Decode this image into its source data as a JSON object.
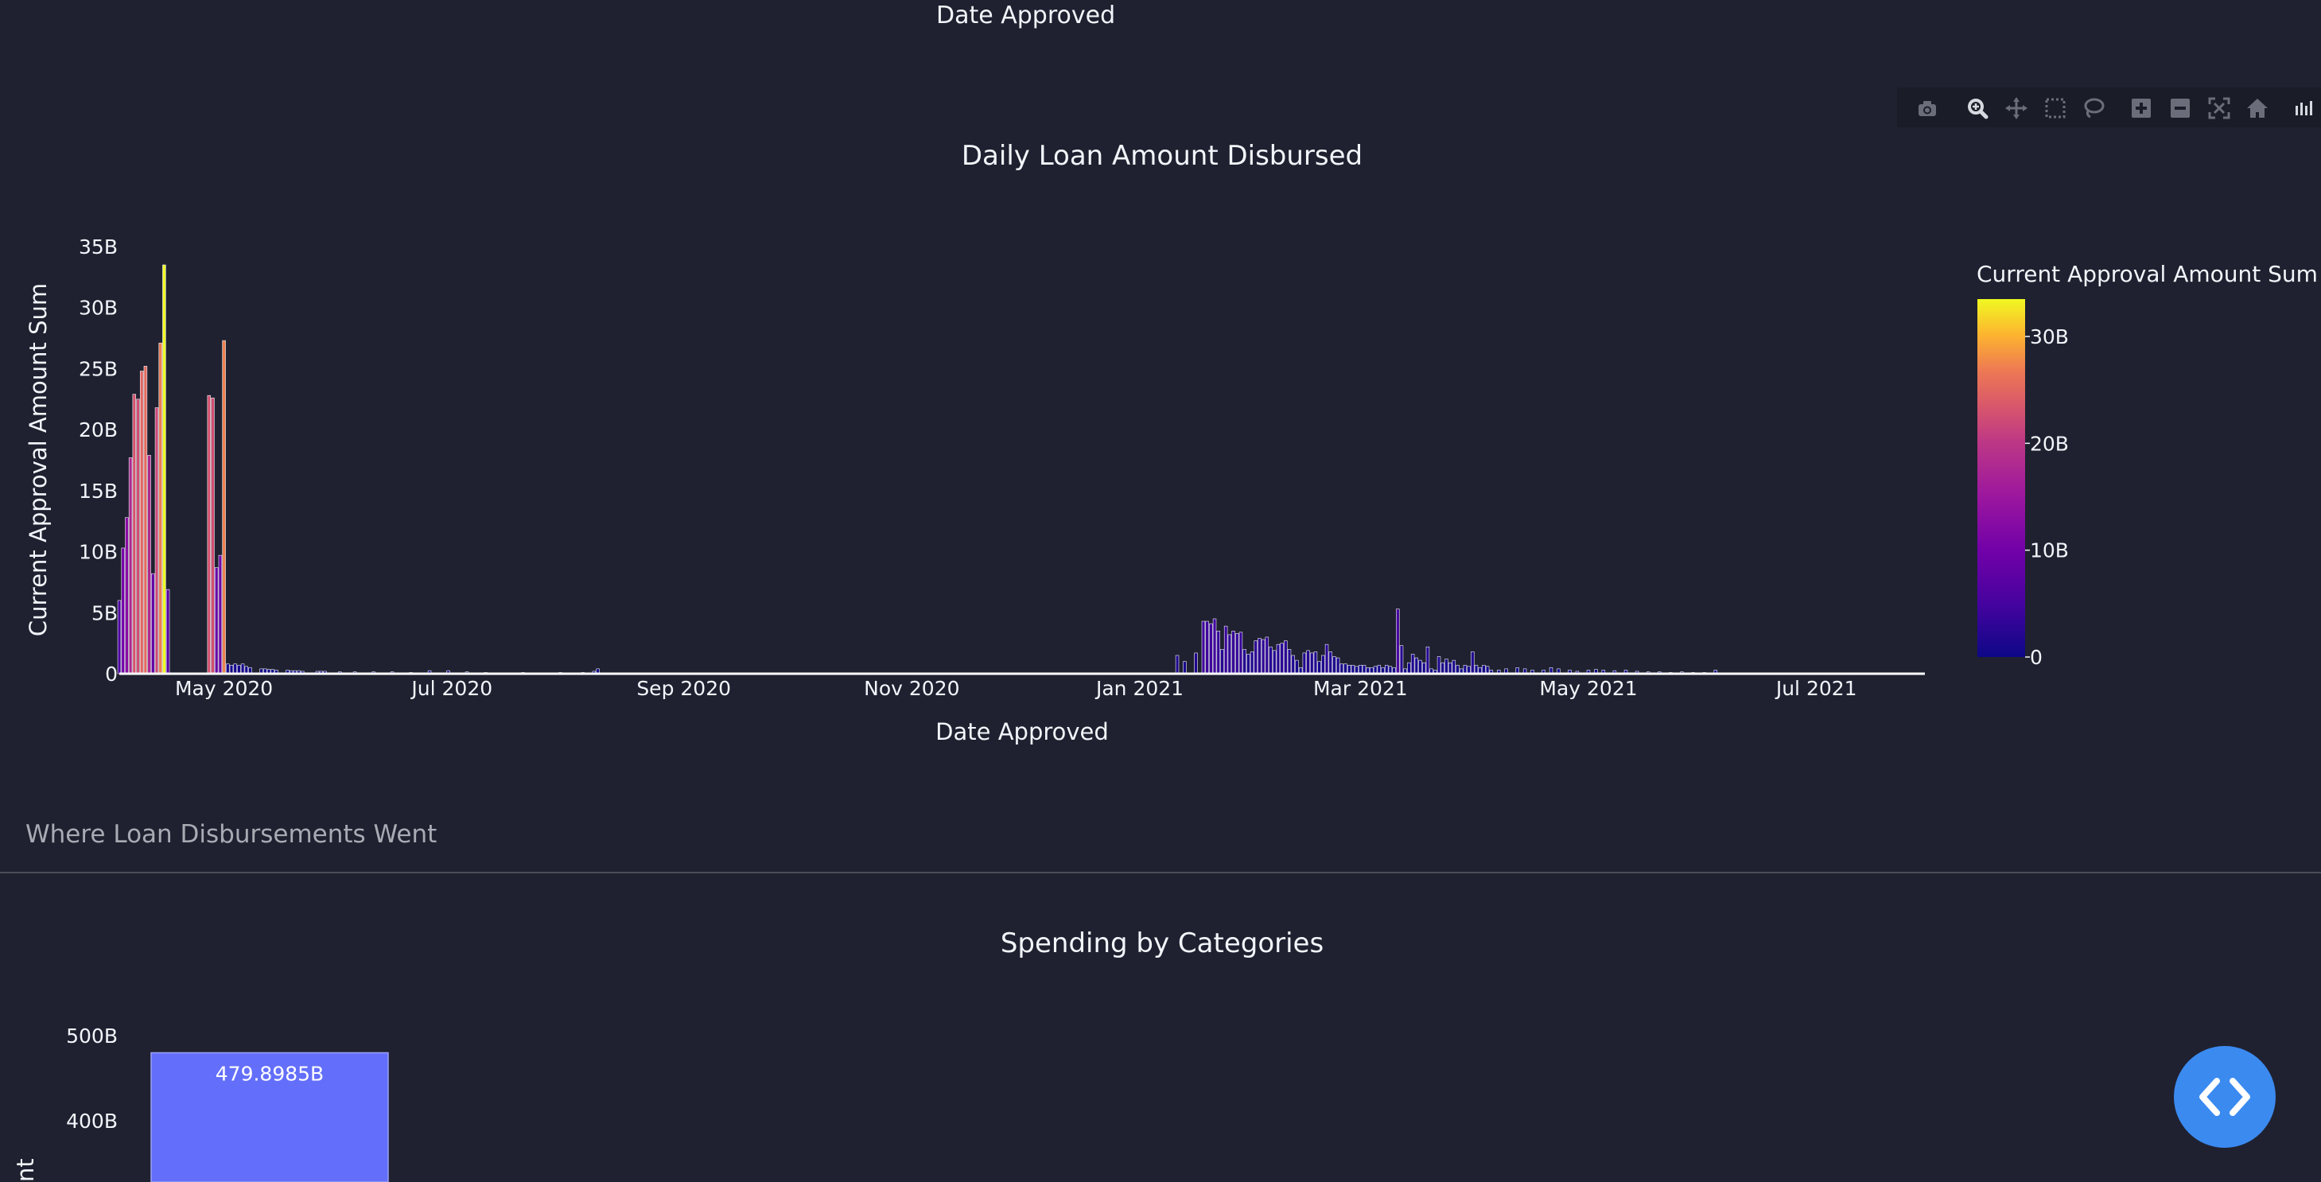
{
  "top_xaxis_title": "Date Approved",
  "modebar": {
    "buttons": [
      "camera-icon",
      "zoom-icon",
      "pan-icon",
      "box-select-icon",
      "lasso-icon",
      "zoom-in-icon",
      "zoom-out-icon",
      "autoscale-icon",
      "reset-axes-icon",
      "plotly-logo-icon"
    ]
  },
  "section_heading": "Where Loan Disbursements Went",
  "fab": {
    "icon": "code-icon"
  },
  "colors": {
    "background": "#1f2130",
    "bar_low": "#0d0887",
    "bar_mid": "#cc4778",
    "bar_high": "#f0f921",
    "spending_bar": "#636efa"
  },
  "chart_data": [
    {
      "type": "bar",
      "title": "Daily Loan Amount Disbursed",
      "xlabel": "Date Approved",
      "ylabel": "Current Approval Amount Sum",
      "x_range": [
        "2020-04-03",
        "2021-07-30"
      ],
      "ylim": [
        0,
        35000000000
      ],
      "y_ticks": [
        0,
        5000000000,
        10000000000,
        15000000000,
        20000000000,
        25000000000,
        30000000000,
        35000000000
      ],
      "y_tick_labels": [
        "0",
        "5B",
        "10B",
        "15B",
        "20B",
        "25B",
        "30B",
        "35B"
      ],
      "x_ticks": [
        "2020-05-01",
        "2020-07-01",
        "2020-09-01",
        "2020-11-01",
        "2021-01-01",
        "2021-03-01",
        "2021-05-01",
        "2021-07-01"
      ],
      "x_tick_labels": [
        "May 2020",
        "Jul 2020",
        "Sep 2020",
        "Nov 2020",
        "Jan 2021",
        "Mar 2021",
        "May 2021",
        "Jul 2021"
      ],
      "colorscale": "plasma",
      "colorbar": {
        "title": "Current Approval Amount Sum",
        "range": [
          0,
          33500000000
        ],
        "ticks": [
          0,
          10000000000,
          20000000000,
          30000000000
        ],
        "tick_labels": [
          "0",
          "10B",
          "20B",
          "30B"
        ]
      },
      "points": [
        {
          "x": "2020-04-03",
          "y": 6000000000
        },
        {
          "x": "2020-04-04",
          "y": 10300000000
        },
        {
          "x": "2020-04-05",
          "y": 12800000000
        },
        {
          "x": "2020-04-06",
          "y": 17700000000
        },
        {
          "x": "2020-04-07",
          "y": 22900000000
        },
        {
          "x": "2020-04-08",
          "y": 22500000000
        },
        {
          "x": "2020-04-09",
          "y": 24800000000
        },
        {
          "x": "2020-04-10",
          "y": 25200000000
        },
        {
          "x": "2020-04-11",
          "y": 17900000000
        },
        {
          "x": "2020-04-12",
          "y": 8200000000
        },
        {
          "x": "2020-04-13",
          "y": 21800000000
        },
        {
          "x": "2020-04-14",
          "y": 27100000000
        },
        {
          "x": "2020-04-15",
          "y": 33500000000
        },
        {
          "x": "2020-04-16",
          "y": 6900000000
        },
        {
          "x": "2020-04-27",
          "y": 22800000000
        },
        {
          "x": "2020-04-28",
          "y": 22600000000
        },
        {
          "x": "2020-04-29",
          "y": 8700000000
        },
        {
          "x": "2020-04-30",
          "y": 9700000000
        },
        {
          "x": "2020-05-01",
          "y": 27300000000
        },
        {
          "x": "2020-05-02",
          "y": 800000000
        },
        {
          "x": "2020-05-03",
          "y": 700000000
        },
        {
          "x": "2020-05-04",
          "y": 800000000
        },
        {
          "x": "2020-05-05",
          "y": 700000000
        },
        {
          "x": "2020-05-06",
          "y": 800000000
        },
        {
          "x": "2020-05-07",
          "y": 600000000
        },
        {
          "x": "2020-05-08",
          "y": 500000000
        },
        {
          "x": "2020-05-11",
          "y": 400000000
        },
        {
          "x": "2020-05-12",
          "y": 400000000
        },
        {
          "x": "2020-05-13",
          "y": 350000000
        },
        {
          "x": "2020-05-14",
          "y": 350000000
        },
        {
          "x": "2020-05-15",
          "y": 300000000
        },
        {
          "x": "2020-05-18",
          "y": 300000000
        },
        {
          "x": "2020-05-19",
          "y": 250000000
        },
        {
          "x": "2020-05-20",
          "y": 250000000
        },
        {
          "x": "2020-05-21",
          "y": 250000000
        },
        {
          "x": "2020-05-22",
          "y": 200000000
        },
        {
          "x": "2020-05-26",
          "y": 200000000
        },
        {
          "x": "2020-05-27",
          "y": 200000000
        },
        {
          "x": "2020-05-28",
          "y": 200000000
        },
        {
          "x": "2020-06-01",
          "y": 150000000
        },
        {
          "x": "2020-06-05",
          "y": 150000000
        },
        {
          "x": "2020-06-10",
          "y": 150000000
        },
        {
          "x": "2020-06-15",
          "y": 150000000
        },
        {
          "x": "2020-06-20",
          "y": 100000000
        },
        {
          "x": "2020-06-25",
          "y": 250000000
        },
        {
          "x": "2020-06-30",
          "y": 250000000
        },
        {
          "x": "2020-07-05",
          "y": 150000000
        },
        {
          "x": "2020-07-10",
          "y": 100000000
        },
        {
          "x": "2020-07-20",
          "y": 100000000
        },
        {
          "x": "2020-07-30",
          "y": 100000000
        },
        {
          "x": "2020-08-05",
          "y": 100000000
        },
        {
          "x": "2020-08-08",
          "y": 200000000
        },
        {
          "x": "2020-08-09",
          "y": 400000000
        },
        {
          "x": "2021-01-11",
          "y": 1500000000
        },
        {
          "x": "2021-01-13",
          "y": 1000000000
        },
        {
          "x": "2021-01-16",
          "y": 1700000000
        },
        {
          "x": "2021-01-18",
          "y": 4300000000
        },
        {
          "x": "2021-01-19",
          "y": 4300000000
        },
        {
          "x": "2021-01-20",
          "y": 4100000000
        },
        {
          "x": "2021-01-21",
          "y": 4500000000
        },
        {
          "x": "2021-01-22",
          "y": 3500000000
        },
        {
          "x": "2021-01-23",
          "y": 2000000000
        },
        {
          "x": "2021-01-24",
          "y": 3900000000
        },
        {
          "x": "2021-01-25",
          "y": 3200000000
        },
        {
          "x": "2021-01-26",
          "y": 3500000000
        },
        {
          "x": "2021-01-27",
          "y": 3300000000
        },
        {
          "x": "2021-01-28",
          "y": 3400000000
        },
        {
          "x": "2021-01-29",
          "y": 2000000000
        },
        {
          "x": "2021-01-30",
          "y": 1600000000
        },
        {
          "x": "2021-01-31",
          "y": 1800000000
        },
        {
          "x": "2021-02-01",
          "y": 2700000000
        },
        {
          "x": "2021-02-02",
          "y": 2900000000
        },
        {
          "x": "2021-02-03",
          "y": 2800000000
        },
        {
          "x": "2021-02-04",
          "y": 3000000000
        },
        {
          "x": "2021-02-05",
          "y": 2200000000
        },
        {
          "x": "2021-02-06",
          "y": 1900000000
        },
        {
          "x": "2021-02-07",
          "y": 2400000000
        },
        {
          "x": "2021-02-08",
          "y": 2500000000
        },
        {
          "x": "2021-02-09",
          "y": 2700000000
        },
        {
          "x": "2021-02-10",
          "y": 2000000000
        },
        {
          "x": "2021-02-11",
          "y": 1500000000
        },
        {
          "x": "2021-02-12",
          "y": 1100000000
        },
        {
          "x": "2021-02-13",
          "y": 500000000
        },
        {
          "x": "2021-02-14",
          "y": 1700000000
        },
        {
          "x": "2021-02-15",
          "y": 1900000000
        },
        {
          "x": "2021-02-16",
          "y": 1700000000
        },
        {
          "x": "2021-02-17",
          "y": 1800000000
        },
        {
          "x": "2021-02-18",
          "y": 1000000000
        },
        {
          "x": "2021-02-19",
          "y": 1500000000
        },
        {
          "x": "2021-02-20",
          "y": 2400000000
        },
        {
          "x": "2021-02-21",
          "y": 1800000000
        },
        {
          "x": "2021-02-22",
          "y": 1400000000
        },
        {
          "x": "2021-02-23",
          "y": 1300000000
        },
        {
          "x": "2021-02-24",
          "y": 800000000
        },
        {
          "x": "2021-02-25",
          "y": 800000000
        },
        {
          "x": "2021-02-26",
          "y": 700000000
        },
        {
          "x": "2021-02-27",
          "y": 700000000
        },
        {
          "x": "2021-02-28",
          "y": 600000000
        },
        {
          "x": "2021-03-01",
          "y": 700000000
        },
        {
          "x": "2021-03-02",
          "y": 700000000
        },
        {
          "x": "2021-03-03",
          "y": 500000000
        },
        {
          "x": "2021-03-04",
          "y": 500000000
        },
        {
          "x": "2021-03-05",
          "y": 600000000
        },
        {
          "x": "2021-03-06",
          "y": 700000000
        },
        {
          "x": "2021-03-07",
          "y": 500000000
        },
        {
          "x": "2021-03-08",
          "y": 700000000
        },
        {
          "x": "2021-03-09",
          "y": 600000000
        },
        {
          "x": "2021-03-10",
          "y": 500000000
        },
        {
          "x": "2021-03-11",
          "y": 5300000000
        },
        {
          "x": "2021-03-12",
          "y": 2300000000
        },
        {
          "x": "2021-03-13",
          "y": 400000000
        },
        {
          "x": "2021-03-14",
          "y": 900000000
        },
        {
          "x": "2021-03-15",
          "y": 1600000000
        },
        {
          "x": "2021-03-16",
          "y": 1300000000
        },
        {
          "x": "2021-03-17",
          "y": 1100000000
        },
        {
          "x": "2021-03-18",
          "y": 900000000
        },
        {
          "x": "2021-03-19",
          "y": 2200000000
        },
        {
          "x": "2021-03-20",
          "y": 400000000
        },
        {
          "x": "2021-03-21",
          "y": 300000000
        },
        {
          "x": "2021-03-22",
          "y": 1400000000
        },
        {
          "x": "2021-03-23",
          "y": 900000000
        },
        {
          "x": "2021-03-24",
          "y": 1200000000
        },
        {
          "x": "2021-03-25",
          "y": 900000000
        },
        {
          "x": "2021-03-26",
          "y": 1100000000
        },
        {
          "x": "2021-03-27",
          "y": 700000000
        },
        {
          "x": "2021-03-28",
          "y": 400000000
        },
        {
          "x": "2021-03-29",
          "y": 700000000
        },
        {
          "x": "2021-03-30",
          "y": 600000000
        },
        {
          "x": "2021-03-31",
          "y": 1800000000
        },
        {
          "x": "2021-04-01",
          "y": 700000000
        },
        {
          "x": "2021-04-02",
          "y": 500000000
        },
        {
          "x": "2021-04-03",
          "y": 700000000
        },
        {
          "x": "2021-04-04",
          "y": 600000000
        },
        {
          "x": "2021-04-05",
          "y": 300000000
        },
        {
          "x": "2021-04-07",
          "y": 300000000
        },
        {
          "x": "2021-04-09",
          "y": 400000000
        },
        {
          "x": "2021-04-12",
          "y": 500000000
        },
        {
          "x": "2021-04-14",
          "y": 400000000
        },
        {
          "x": "2021-04-16",
          "y": 300000000
        },
        {
          "x": "2021-04-19",
          "y": 300000000
        },
        {
          "x": "2021-04-21",
          "y": 500000000
        },
        {
          "x": "2021-04-23",
          "y": 400000000
        },
        {
          "x": "2021-04-26",
          "y": 300000000
        },
        {
          "x": "2021-04-28",
          "y": 200000000
        },
        {
          "x": "2021-05-01",
          "y": 300000000
        },
        {
          "x": "2021-05-03",
          "y": 350000000
        },
        {
          "x": "2021-05-05",
          "y": 300000000
        },
        {
          "x": "2021-05-08",
          "y": 250000000
        },
        {
          "x": "2021-05-11",
          "y": 300000000
        },
        {
          "x": "2021-05-14",
          "y": 200000000
        },
        {
          "x": "2021-05-17",
          "y": 150000000
        },
        {
          "x": "2021-05-20",
          "y": 150000000
        },
        {
          "x": "2021-05-23",
          "y": 100000000
        },
        {
          "x": "2021-05-26",
          "y": 150000000
        },
        {
          "x": "2021-05-29",
          "y": 100000000
        },
        {
          "x": "2021-06-01",
          "y": 100000000
        },
        {
          "x": "2021-06-04",
          "y": 300000000
        },
        {
          "x": "2021-06-10",
          "y": 50000000
        },
        {
          "x": "2021-06-15",
          "y": 50000000
        },
        {
          "x": "2021-06-20",
          "y": 50000000
        },
        {
          "x": "2021-06-25",
          "y": 50000000
        }
      ]
    },
    {
      "type": "bar",
      "title": "Spending by Categories",
      "ylabel": "nt",
      "y_ticks": [
        400000000000,
        500000000000
      ],
      "y_tick_labels": [
        "400B",
        "500B"
      ],
      "points": [
        {
          "y": 479898500000,
          "label": "479.8985B"
        }
      ]
    }
  ]
}
